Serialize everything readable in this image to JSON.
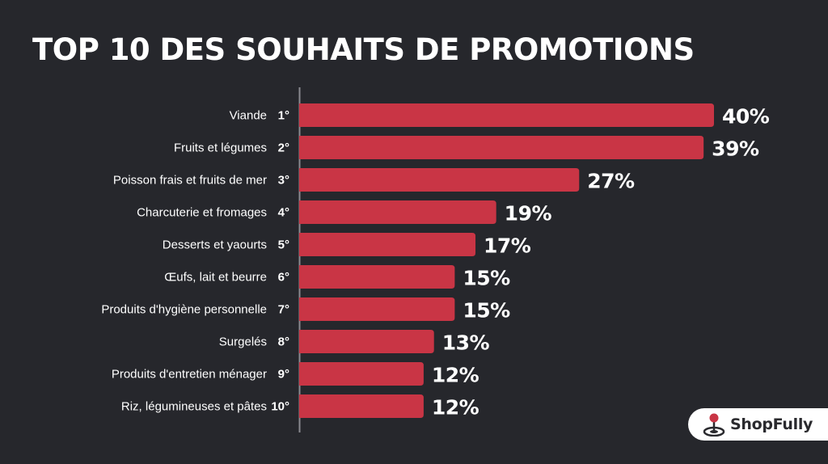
{
  "title": "TOP 10 DES SOUHAITS DE PROMOTIONS",
  "logo": {
    "text": "ShopFully",
    "icon": "map-pin-icon"
  },
  "colors": {
    "background": "#26272c",
    "bar": "#c93545",
    "text": "#ffffff"
  },
  "chart_data": {
    "type": "bar",
    "orientation": "horizontal",
    "title": "TOP 10 DES SOUHAITS DE PROMOTIONS",
    "categories": [
      "Viande",
      "Fruits et légumes",
      "Poisson frais et fruits de mer",
      "Charcuterie et fromages",
      "Desserts et yaourts",
      "Œufs, lait et beurre",
      "Produits d'hygiène personnelle",
      "Surgelés",
      "Produits d'entretien ménager",
      "Riz, légumineuses et pâtes"
    ],
    "ranks": [
      "1°",
      "2°",
      "3°",
      "4°",
      "5°",
      "6°",
      "7°",
      "8°",
      "9°",
      "10°"
    ],
    "values": [
      40,
      39,
      27,
      19,
      17,
      15,
      15,
      13,
      12,
      12
    ],
    "value_labels": [
      "40%",
      "39%",
      "27%",
      "19%",
      "17%",
      "15%",
      "15%",
      "13%",
      "12%",
      "12%"
    ],
    "unit": "%",
    "xlim": [
      0,
      40
    ],
    "grid": false,
    "legend": "none"
  }
}
